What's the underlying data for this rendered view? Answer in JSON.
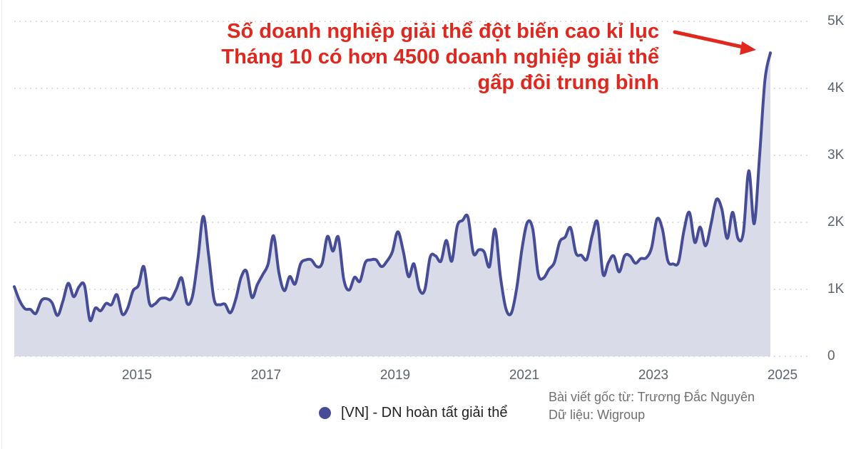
{
  "annotation": {
    "lines": [
      "Số doanh nghiệp giải thể đột biến cao kỉ lục",
      "Tháng 10 có hơn 4500 doanh nghiệp giải thể",
      "gấp đôi trung bình"
    ],
    "color": "#e0281e"
  },
  "legend": {
    "label": "[VN] - DN hoàn tất giải thể",
    "color": "#474c96"
  },
  "credits": {
    "source_line": "Bài viết gốc từ: Trương Đắc Nguyên",
    "data_line": "Dữ liệu: Wigroup"
  },
  "colors": {
    "line": "#474c96",
    "fill": "#d9dbe8",
    "grid": "#c8c8c8",
    "tick_text": "#5d6370",
    "arrow": "#e0281e"
  },
  "chart_data": {
    "type": "area",
    "title": "Số doanh nghiệp giải thể đột biến cao kỉ lục",
    "xlabel": "",
    "ylabel": "",
    "series": [
      {
        "name": "[VN] - DN hoàn tất giải thể",
        "start": "2013-02",
        "end": "2024-10",
        "frequency": "monthly",
        "values": [
          1040,
          830,
          710,
          700,
          640,
          830,
          860,
          800,
          610,
          820,
          1090,
          890,
          1040,
          1060,
          540,
          720,
          680,
          790,
          770,
          920,
          630,
          720,
          980,
          1060,
          1340,
          800,
          780,
          860,
          870,
          850,
          1000,
          1170,
          790,
          900,
          1450,
          2090,
          1500,
          850,
          770,
          780,
          650,
          850,
          1180,
          1270,
          880,
          1070,
          1220,
          1380,
          1800,
          1250,
          980,
          1190,
          1080,
          1380,
          1440,
          1440,
          1340,
          1390,
          1790,
          1570,
          1780,
          1150,
          990,
          1180,
          1120,
          1400,
          1440,
          1440,
          1340,
          1420,
          1560,
          1860,
          1580,
          1190,
          1380,
          1000,
          990,
          1480,
          1500,
          1420,
          1730,
          1420,
          1940,
          2030,
          2080,
          1540,
          1590,
          1560,
          1340,
          1900,
          1200,
          720,
          640,
          1000,
          1600,
          2000,
          1900,
          1230,
          1170,
          1300,
          1400,
          1710,
          1780,
          1920,
          1540,
          1510,
          1450,
          1800,
          2000,
          1230,
          1400,
          1500,
          1260,
          1500,
          1500,
          1390,
          1460,
          1470,
          1620,
          2050,
          1900,
          1430,
          1380,
          1410,
          1880,
          2150,
          1700,
          1930,
          1650,
          1970,
          2340,
          2200,
          1760,
          2150,
          1760,
          1850,
          2770,
          1980,
          3000,
          4130,
          4530
        ]
      }
    ],
    "x_ticks": [
      "2015",
      "2017",
      "2019",
      "2021",
      "2023",
      "2025"
    ],
    "y_ticks": [
      "0",
      "1K",
      "2K",
      "3K",
      "4K",
      "5K"
    ],
    "y_tick_values": [
      0,
      1000,
      2000,
      3000,
      4000,
      5000
    ],
    "ylim": [
      0,
      5000
    ],
    "grid": "horizontal dotted",
    "legend_position": "bottom",
    "y_axis_side": "right",
    "annotations": [
      {
        "text": "Tháng 10 có hơn 4500 doanh nghiệp giải thể",
        "points_to": "2024-10",
        "value": 4530
      }
    ]
  }
}
